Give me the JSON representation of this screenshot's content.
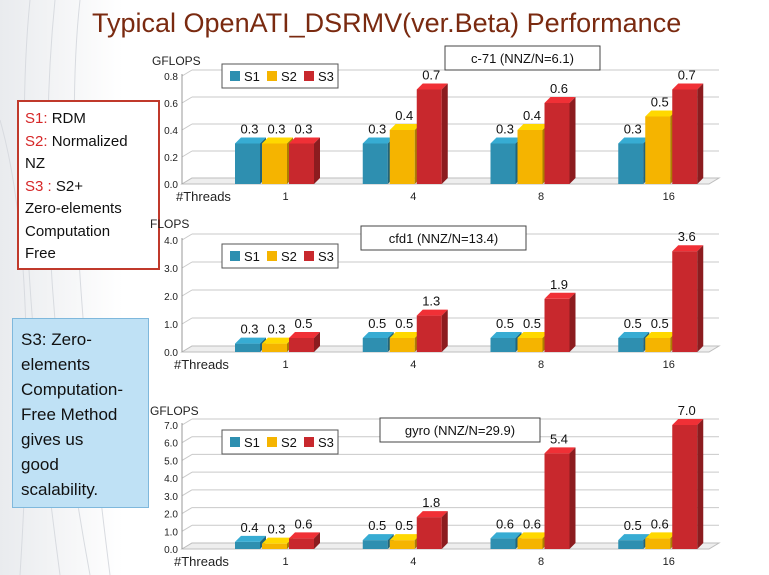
{
  "slide": {
    "title": "Typical OpenATI_DSRMV(ver.Beta) Performance",
    "legend_box": {
      "items": [
        {
          "key": "S1:",
          "text": "RDM"
        },
        {
          "key": "S2:",
          "text": "Normalized"
        },
        {
          "key": "",
          "text": "NZ"
        },
        {
          "key": "S3 :",
          "text": "S2+"
        },
        {
          "key": "",
          "text": "Zero-elements"
        },
        {
          "key": "",
          "text": "Computation"
        },
        {
          "key": "",
          "text": "Free"
        }
      ]
    },
    "note_box": {
      "lines": [
        "S3: Zero-",
        "elements",
        "Computation-",
        "Free Method",
        "gives us",
        "good",
        "scalability."
      ]
    }
  },
  "colors": {
    "S1": "#2e8fb0",
    "S2": "#f5b400",
    "S3": "#c8282d",
    "title": "#7a2a10",
    "accent_border": "#c0392b"
  },
  "chart_data": [
    {
      "type": "bar",
      "annotation": "c-71 (NNZ/N=6.1)",
      "ylabel": "GFLOPS",
      "xlabel": "#Threads",
      "categories": [
        "1",
        "4",
        "8",
        "16"
      ],
      "yticks": [
        "0.0",
        "0.2",
        "0.4",
        "0.6",
        "0.8"
      ],
      "ylim": [
        0,
        0.8
      ],
      "grid": true,
      "legend_position": "top-left",
      "series": [
        {
          "name": "S1",
          "values": [
            0.3,
            0.3,
            0.3,
            0.3
          ],
          "labels": [
            "0.3",
            "0.3",
            "0.3",
            "0.3"
          ]
        },
        {
          "name": "S2",
          "values": [
            0.3,
            0.4,
            0.4,
            0.5
          ],
          "labels": [
            "0.3",
            "0.4",
            "0.4",
            "0.5"
          ]
        },
        {
          "name": "S3",
          "values": [
            0.3,
            0.7,
            0.6,
            0.7
          ],
          "labels": [
            "0.3",
            "0.7",
            "0.6",
            "0.7"
          ]
        }
      ]
    },
    {
      "type": "bar",
      "annotation": "cfd1 (NNZ/N=13.4)",
      "ylabel": "FLOPS",
      "xlabel": "#Threads",
      "categories": [
        "1",
        "4",
        "8",
        "16"
      ],
      "yticks": [
        "0.0",
        "1.0",
        "2.0",
        "3.0",
        "4.0"
      ],
      "ylim": [
        0,
        4.0
      ],
      "grid": true,
      "legend_position": "top-left",
      "series": [
        {
          "name": "S1",
          "values": [
            0.3,
            0.5,
            0.5,
            0.5
          ],
          "labels": [
            "0.3",
            "0.5",
            "0.5",
            "0.5"
          ]
        },
        {
          "name": "S2",
          "values": [
            0.3,
            0.5,
            0.5,
            0.5
          ],
          "labels": [
            "0.3",
            "0.5",
            "0.5",
            "0.5"
          ]
        },
        {
          "name": "S3",
          "values": [
            0.5,
            1.3,
            1.9,
            3.6
          ],
          "labels": [
            "0.5",
            "1.3",
            "1.9",
            "3.6"
          ]
        }
      ]
    },
    {
      "type": "bar",
      "annotation": "gyro (NNZ/N=29.9)",
      "ylabel": "GFLOPS",
      "xlabel": "#Threads",
      "categories": [
        "1",
        "4",
        "8",
        "16"
      ],
      "yticks": [
        "0.0",
        "1.0",
        "2.0",
        "3.0",
        "4.0",
        "5.0",
        "6.0",
        "7.0"
      ],
      "ylim": [
        0,
        7.0
      ],
      "grid": true,
      "legend_position": "top-left",
      "series": [
        {
          "name": "S1",
          "values": [
            0.4,
            0.5,
            0.6,
            0.5
          ],
          "labels": [
            "0.4",
            "0.5",
            "0.6",
            "0.5"
          ]
        },
        {
          "name": "S2",
          "values": [
            0.3,
            0.5,
            0.6,
            0.6
          ],
          "labels": [
            "0.3",
            "0.5",
            "0.6",
            "0.6"
          ]
        },
        {
          "name": "S3",
          "values": [
            0.6,
            1.8,
            5.4,
            7.0
          ],
          "labels": [
            "0.6",
            "1.8",
            "5.4",
            "7.0"
          ]
        }
      ]
    }
  ]
}
